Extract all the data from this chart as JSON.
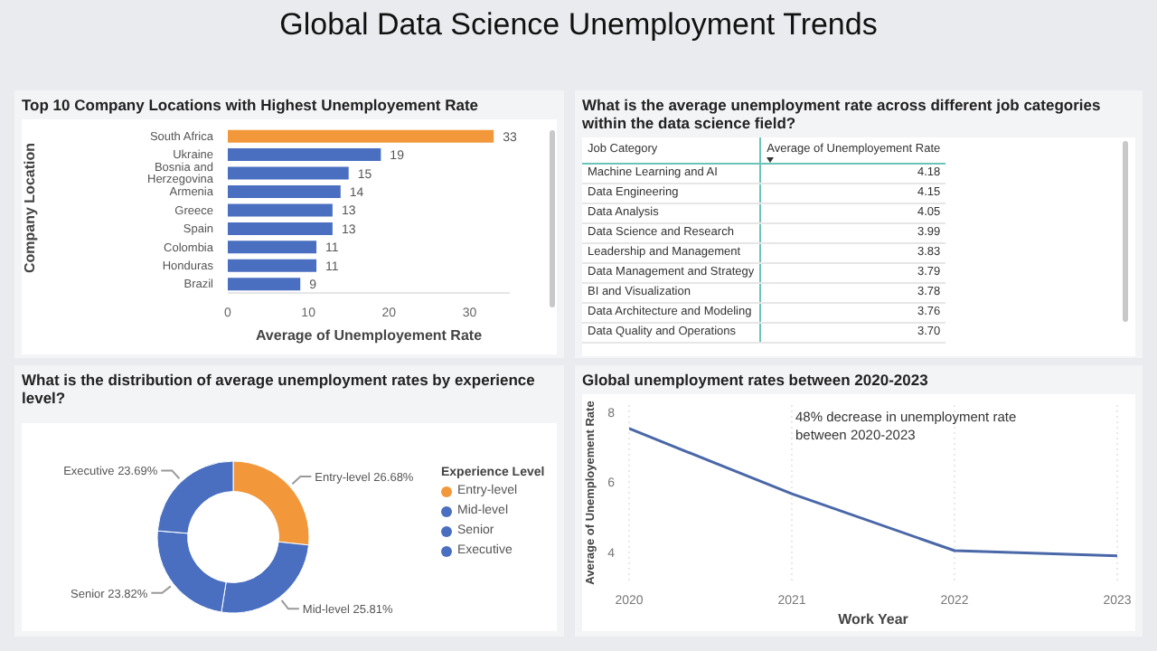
{
  "chart_data": [
    {
      "type": "other",
      "title": "Global Data Science Unemployment Trends"
    },
    {
      "type": "bar",
      "orientation": "horizontal",
      "title": "Top 10 Company Locations with Highest Unemployement Rate",
      "xlabel": "Average of Unemployement Rate",
      "ylabel": "Company Location",
      "categories": [
        "South Africa",
        "Ukraine",
        "Bosnia and Herzegovina",
        "Armenia",
        "Greece",
        "Spain",
        "Colombia",
        "Honduras",
        "Brazil"
      ],
      "values": [
        33,
        19,
        15,
        14,
        13,
        13,
        11,
        11,
        9
      ],
      "colors": [
        "#f2973a",
        "#4a6fc0",
        "#4a6fc0",
        "#4a6fc0",
        "#4a6fc0",
        "#4a6fc0",
        "#4a6fc0",
        "#4a6fc0",
        "#4a6fc0"
      ],
      "xlim": [
        0,
        35
      ],
      "xticks": [
        0,
        10,
        20,
        30
      ],
      "data_labels": true
    },
    {
      "type": "other",
      "title": "What is the average unemployment rate across different job categories within the data science field?",
      "xlabel": "Job Category",
      "ylabel": "Average of Unemployement Rate",
      "categories": [
        "Machine Learning and AI",
        "Data Engineering",
        "Data Analysis",
        "Data Science and Research",
        "Leadership and Management",
        "Data Management and Strategy",
        "BI and Visualization",
        "Data Architecture and Modeling",
        "Data Quality and Operations"
      ],
      "values": [
        4.18,
        4.15,
        4.05,
        3.99,
        3.83,
        3.79,
        3.78,
        3.76,
        3.7
      ],
      "value_labels": [
        "4.18",
        "4.15",
        "4.05",
        "3.99",
        "3.83",
        "3.79",
        "3.78",
        "3.76",
        "3.70"
      ]
    },
    {
      "type": "donut",
      "title": "What is the distribution of average unemployment rates by experience level?",
      "legend_title": "Experience Level",
      "legend": "right",
      "categories": [
        "Entry-level",
        "Mid-level",
        "Senior",
        "Executive"
      ],
      "values": [
        26.68,
        25.81,
        23.82,
        23.69
      ],
      "value_labels": [
        "26.68%",
        "25.81%",
        "23.82%",
        "23.69%"
      ],
      "colors": [
        "#f2973a",
        "#4a6fc0",
        "#4a6fc0",
        "#4a6fc0"
      ]
    },
    {
      "type": "line",
      "title": "Global unemployment rates between 2020-2023",
      "xlabel": "Work Year",
      "ylabel": "Average of Unemployement Rate",
      "x": [
        2020,
        2021,
        2022,
        2023
      ],
      "values": [
        7.53,
        5.67,
        4.05,
        3.9
      ],
      "color": "#4a67a8",
      "xlim": [
        2020,
        2023
      ],
      "xticks": [
        2020,
        2021,
        2022,
        2023
      ],
      "ylim": [
        3.2,
        8.2
      ],
      "yticks": [
        4,
        6,
        8
      ],
      "grid": "x",
      "marker": "none",
      "annotations": [
        "48% decrease in unemployment rate between 2020-2023"
      ]
    }
  ]
}
